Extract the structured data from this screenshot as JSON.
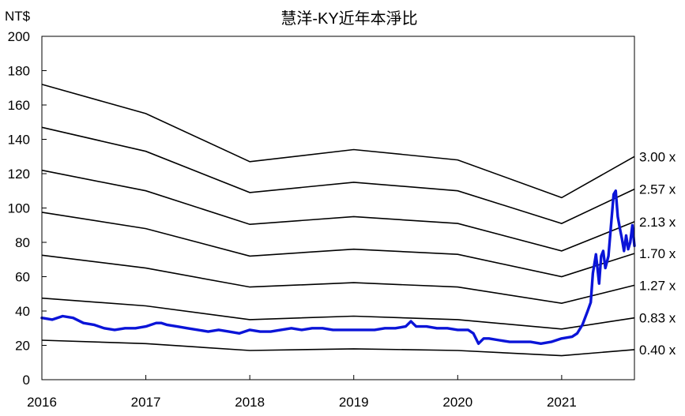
{
  "chart_data": {
    "type": "line",
    "title": "慧洋-KY近年本淨比",
    "ylabel": "NT$",
    "xlabel": "",
    "ylim": [
      0,
      200
    ],
    "xlim": [
      2016,
      2021.7
    ],
    "y_ticks": [
      "0",
      "20",
      "40",
      "60",
      "80",
      "100",
      "120",
      "140",
      "160",
      "180",
      "200"
    ],
    "x_ticks": [
      "2016",
      "2017",
      "2018",
      "2019",
      "2020",
      "2021"
    ],
    "grid": false,
    "band_labels": [
      "3.00 x",
      "2.57 x",
      "2.13 x",
      "1.70 x",
      "1.27 x",
      "0.83 x",
      "0.40 x"
    ],
    "bands": [
      {
        "name": "3.00 x",
        "x": [
          2016,
          2017,
          2018,
          2019,
          2020,
          2021,
          2021.7
        ],
        "values": [
          172,
          155,
          127,
          134,
          128,
          106,
          130
        ]
      },
      {
        "name": "2.57 x",
        "x": [
          2016,
          2017,
          2018,
          2019,
          2020,
          2021,
          2021.7
        ],
        "values": [
          147,
          133,
          109,
          115,
          110,
          91,
          111
        ]
      },
      {
        "name": "2.13 x",
        "x": [
          2016,
          2017,
          2018,
          2019,
          2020,
          2021,
          2021.7
        ],
        "values": [
          122,
          110,
          90.5,
          95,
          91,
          75,
          92
        ]
      },
      {
        "name": "1.70 x",
        "x": [
          2016,
          2017,
          2018,
          2019,
          2020,
          2021,
          2021.7
        ],
        "values": [
          97.5,
          88,
          72,
          76,
          73,
          60,
          73.5
        ]
      },
      {
        "name": "1.27 x",
        "x": [
          2016,
          2017,
          2018,
          2019,
          2020,
          2021,
          2021.7
        ],
        "values": [
          72.5,
          65,
          54,
          56.5,
          54,
          44.5,
          55
        ]
      },
      {
        "name": "0.83 x",
        "x": [
          2016,
          2017,
          2018,
          2019,
          2020,
          2021,
          2021.7
        ],
        "values": [
          47.5,
          43,
          35,
          37,
          35,
          29.5,
          36
        ]
      },
      {
        "name": "0.40 x",
        "x": [
          2016,
          2017,
          2018,
          2019,
          2020,
          2021,
          2021.7
        ],
        "values": [
          23,
          21,
          17,
          18,
          17,
          14,
          17.5
        ]
      }
    ],
    "price": {
      "x": [
        2016.0,
        2016.1,
        2016.2,
        2016.3,
        2016.4,
        2016.5,
        2016.6,
        2016.7,
        2016.8,
        2016.9,
        2017.0,
        2017.1,
        2017.15,
        2017.2,
        2017.3,
        2017.4,
        2017.5,
        2017.6,
        2017.7,
        2017.8,
        2017.9,
        2018.0,
        2018.1,
        2018.2,
        2018.3,
        2018.4,
        2018.5,
        2018.6,
        2018.7,
        2018.8,
        2018.9,
        2019.0,
        2019.1,
        2019.2,
        2019.3,
        2019.4,
        2019.5,
        2019.55,
        2019.6,
        2019.7,
        2019.8,
        2019.9,
        2020.0,
        2020.1,
        2020.15,
        2020.2,
        2020.25,
        2020.3,
        2020.4,
        2020.5,
        2020.6,
        2020.7,
        2020.8,
        2020.9,
        2021.0,
        2021.1,
        2021.15,
        2021.2,
        2021.25,
        2021.28,
        2021.3,
        2021.33,
        2021.36,
        2021.38,
        2021.4,
        2021.42,
        2021.45,
        2021.48,
        2021.5,
        2021.52,
        2021.54,
        2021.56,
        2021.58,
        2021.6,
        2021.62,
        2021.64,
        2021.66,
        2021.68,
        2021.7
      ],
      "values": [
        36,
        35,
        37,
        36,
        33,
        32,
        30,
        29,
        30,
        30,
        31,
        33,
        33,
        32,
        31,
        30,
        29,
        28,
        29,
        28,
        27,
        29,
        28,
        28,
        29,
        30,
        29,
        30,
        30,
        29,
        29,
        29,
        29,
        29,
        30,
        30,
        31,
        34,
        31,
        31,
        30,
        30,
        29,
        29,
        27,
        21,
        24,
        24,
        23,
        22,
        22,
        22,
        21,
        22,
        24,
        25,
        27,
        32,
        40,
        45,
        62,
        73,
        56,
        72,
        75,
        65,
        72,
        94,
        108,
        110,
        95,
        88,
        82,
        75,
        84,
        76,
        80,
        90,
        78
      ]
    },
    "colors": {
      "price": "#0a14d8",
      "bands": "#000000",
      "axis": "#000000"
    }
  }
}
